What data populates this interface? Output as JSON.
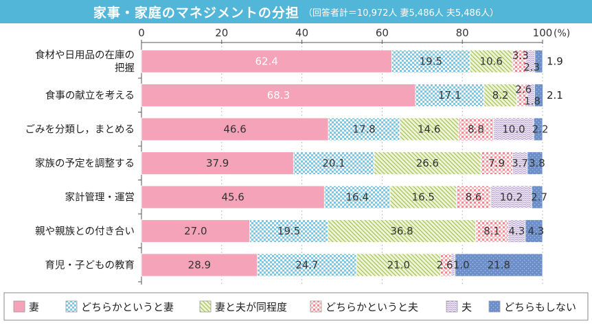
{
  "title": "家事・家庭のマネジメントの分担",
  "subtitle": "（回答者計＝10,972人 妻5,486人 夫5,486人）",
  "unit_label": "(%)",
  "chart_data": {
    "type": "bar",
    "orientation": "horizontal",
    "stacked": true,
    "title": "家事・家庭のマネジメントの分担",
    "xlim": [
      0,
      100
    ],
    "x_ticks": [
      "0",
      "20",
      "40",
      "60",
      "80",
      "100"
    ],
    "categories": [
      [
        "食材や日用品の在庫の",
        "把握"
      ],
      [
        "食事の献立を考える"
      ],
      [
        "ごみを分類し，まとめる"
      ],
      [
        "家族の予定を調整する"
      ],
      [
        "家計管理・運営"
      ],
      [
        "親や親族との付き合い"
      ],
      [
        "育児・子どもの教育"
      ]
    ],
    "series": [
      {
        "name": "妻",
        "values": [
          62.4,
          68.3,
          46.6,
          37.9,
          45.6,
          27.0,
          28.9
        ],
        "labels": [
          "62.4",
          "68.3",
          "46.6",
          "37.9",
          "45.6",
          "27.0",
          "28.9"
        ],
        "color": "#f4a3b9"
      },
      {
        "name": "どちらかというと妻",
        "values": [
          19.5,
          17.1,
          17.8,
          20.1,
          16.4,
          19.5,
          24.7
        ],
        "labels": [
          "19.5",
          "17.1",
          "17.8",
          "20.1",
          "16.4",
          "19.5",
          "24.7"
        ],
        "color": "#7ec7e2"
      },
      {
        "name": "妻と夫が同程度",
        "values": [
          10.6,
          8.2,
          14.6,
          26.6,
          16.5,
          36.8,
          21.0
        ],
        "labels": [
          "10.6",
          "8.2",
          "14.6",
          "26.6",
          "16.5",
          "36.8",
          "21.0"
        ],
        "color": "#c5db8a"
      },
      {
        "name": "どちらかというと夫",
        "values": [
          3.3,
          2.6,
          8.8,
          7.9,
          8.6,
          8.1,
          2.6
        ],
        "labels": [
          "3.3",
          "2.6",
          "8.8",
          "7.9",
          "8.6",
          "8.1",
          "2.6"
        ],
        "color": "#ef8a8f"
      },
      {
        "name": "夫",
        "values": [
          2.3,
          1.8,
          10.0,
          3.7,
          10.2,
          4.3,
          1.0
        ],
        "labels": [
          "2.3",
          "1.8",
          "10.0",
          "3.7",
          "10.2",
          "4.3",
          "1.0"
        ],
        "color": "#c6b3d9"
      },
      {
        "name": "どちらもしない",
        "values": [
          1.9,
          2.1,
          2.2,
          3.8,
          2.7,
          4.3,
          21.8
        ],
        "labels": [
          "1.9",
          "2.1",
          "2.2",
          "3.8",
          "2.7",
          "4.3",
          "21.8"
        ],
        "color": "#6d8fc9"
      }
    ],
    "legend_position": "bottom"
  }
}
